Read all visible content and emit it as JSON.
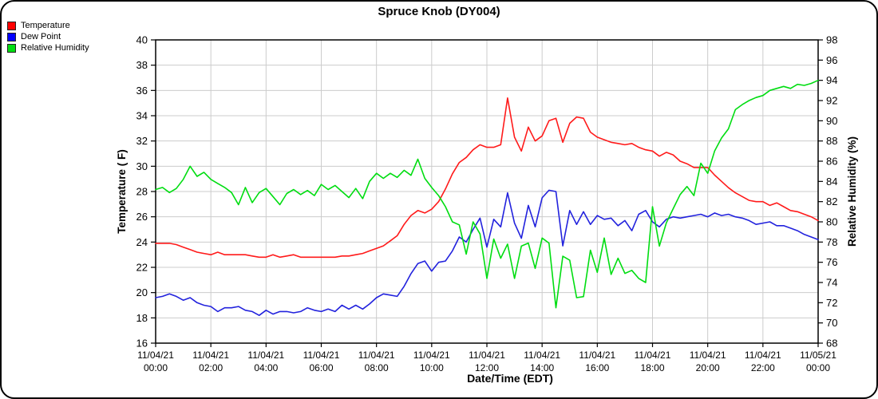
{
  "title": "Spruce Knob (DY004)",
  "legend": {
    "items": [
      {
        "label": "Temperature",
        "color": "#ff0000"
      },
      {
        "label": "Dew Point",
        "color": "#0000ff"
      },
      {
        "label": "Relative Humidity",
        "color": "#00dd11"
      }
    ]
  },
  "chart_data": {
    "type": "line",
    "title": "Spruce Knob (DY004)",
    "xlabel": "Date/Time (EDT)",
    "ylabel_left": "Temperature ( F)",
    "ylabel_right": "Relative Humidity (%)",
    "grid": true,
    "legend_position": "top-left",
    "interval_minutes": 15,
    "x_start": "11/04/21 00:00",
    "x_end": "11/05/21 00:00",
    "x_ticks": [
      {
        "date": "11/04/21",
        "time": "00:00"
      },
      {
        "date": "11/04/21",
        "time": "02:00"
      },
      {
        "date": "11/04/21",
        "time": "04:00"
      },
      {
        "date": "11/04/21",
        "time": "06:00"
      },
      {
        "date": "11/04/21",
        "time": "08:00"
      },
      {
        "date": "11/04/21",
        "time": "10:00"
      },
      {
        "date": "11/04/21",
        "time": "12:00"
      },
      {
        "date": "11/04/21",
        "time": "14:00"
      },
      {
        "date": "11/04/21",
        "time": "16:00"
      },
      {
        "date": "11/04/21",
        "time": "18:00"
      },
      {
        "date": "11/04/21",
        "time": "20:00"
      },
      {
        "date": "11/04/21",
        "time": "22:00"
      },
      {
        "date": "11/05/21",
        "time": "00:00"
      }
    ],
    "y_left": {
      "min": 16,
      "max": 40,
      "tick_step": 2
    },
    "y_right": {
      "min": 68,
      "max": 98,
      "tick_step": 2
    },
    "series": [
      {
        "name": "Temperature",
        "color": "#ff1a1a",
        "axis": "left",
        "values": [
          23.9,
          23.9,
          23.9,
          23.8,
          23.6,
          23.4,
          23.2,
          23.1,
          23.0,
          23.2,
          23.0,
          23.0,
          23.0,
          23.0,
          22.9,
          22.8,
          22.8,
          23.0,
          22.8,
          22.9,
          23.0,
          22.8,
          22.8,
          22.8,
          22.8,
          22.8,
          22.8,
          22.9,
          22.9,
          23.0,
          23.1,
          23.3,
          23.5,
          23.7,
          24.1,
          24.5,
          25.4,
          26.1,
          26.5,
          26.3,
          26.6,
          27.2,
          28.2,
          29.4,
          30.3,
          30.7,
          31.3,
          31.7,
          31.5,
          31.5,
          31.7,
          35.4,
          32.3,
          31.2,
          33.1,
          32.0,
          32.4,
          33.6,
          33.8,
          31.9,
          33.4,
          33.9,
          33.8,
          32.7,
          32.3,
          32.1,
          31.9,
          31.8,
          31.7,
          31.8,
          31.5,
          31.3,
          31.2,
          30.8,
          31.1,
          30.9,
          30.4,
          30.2,
          29.9,
          29.9,
          29.9,
          29.3,
          28.8,
          28.3,
          27.9,
          27.6,
          27.3,
          27.2,
          27.2,
          26.9,
          27.1,
          26.8,
          26.5,
          26.4,
          26.2,
          26.0,
          25.7
        ]
      },
      {
        "name": "Dew Point",
        "color": "#2222dd",
        "axis": "left",
        "values": [
          19.6,
          19.7,
          19.9,
          19.7,
          19.4,
          19.6,
          19.2,
          19.0,
          18.9,
          18.5,
          18.8,
          18.8,
          18.9,
          18.6,
          18.5,
          18.2,
          18.6,
          18.3,
          18.5,
          18.5,
          18.4,
          18.5,
          18.8,
          18.6,
          18.5,
          18.7,
          18.5,
          19.0,
          18.7,
          19.0,
          18.7,
          19.1,
          19.6,
          19.9,
          19.8,
          19.7,
          20.5,
          21.5,
          22.3,
          22.5,
          21.7,
          22.4,
          22.5,
          23.3,
          24.4,
          24.0,
          25.0,
          25.9,
          23.6,
          25.8,
          25.2,
          27.9,
          25.5,
          24.3,
          26.9,
          25.2,
          27.5,
          28.1,
          28.0,
          23.7,
          26.5,
          25.4,
          26.4,
          25.4,
          26.1,
          25.8,
          25.9,
          25.3,
          25.7,
          24.9,
          26.2,
          26.5,
          25.6,
          25.2,
          25.8,
          26.0,
          25.9,
          26.0,
          26.1,
          26.2,
          26.0,
          26.3,
          26.1,
          26.2,
          26.0,
          25.9,
          25.7,
          25.4,
          25.5,
          25.6,
          25.3,
          25.3,
          25.1,
          24.9,
          24.6,
          24.4,
          24.2
        ]
      },
      {
        "name": "Relative Humidity",
        "color": "#00dd11",
        "axis": "right",
        "values": [
          83.2,
          83.4,
          82.9,
          83.3,
          84.2,
          85.5,
          84.5,
          84.9,
          84.2,
          83.8,
          83.4,
          82.9,
          81.7,
          83.4,
          81.9,
          82.9,
          83.3,
          82.5,
          81.7,
          82.8,
          83.2,
          82.7,
          83.1,
          82.6,
          83.7,
          83.2,
          83.6,
          83.0,
          82.4,
          83.3,
          82.3,
          84.0,
          84.8,
          84.3,
          84.8,
          84.4,
          85.1,
          84.6,
          86.2,
          84.3,
          83.4,
          82.6,
          81.5,
          80.0,
          79.7,
          76.8,
          80.0,
          78.8,
          74.4,
          78.3,
          76.4,
          77.8,
          74.4,
          77.6,
          77.9,
          75.4,
          78.4,
          77.9,
          71.5,
          76.6,
          76.2,
          72.5,
          72.6,
          77.2,
          75.0,
          78.4,
          74.8,
          76.4,
          74.9,
          75.2,
          74.4,
          74.0,
          81.5,
          77.6,
          79.9,
          81.3,
          82.7,
          83.5,
          82.6,
          85.8,
          84.8,
          87.0,
          88.3,
          89.2,
          91.1,
          91.6,
          92.0,
          92.3,
          92.5,
          93.0,
          93.2,
          93.4,
          93.2,
          93.6,
          93.5,
          93.7,
          94.0
        ]
      }
    ]
  }
}
